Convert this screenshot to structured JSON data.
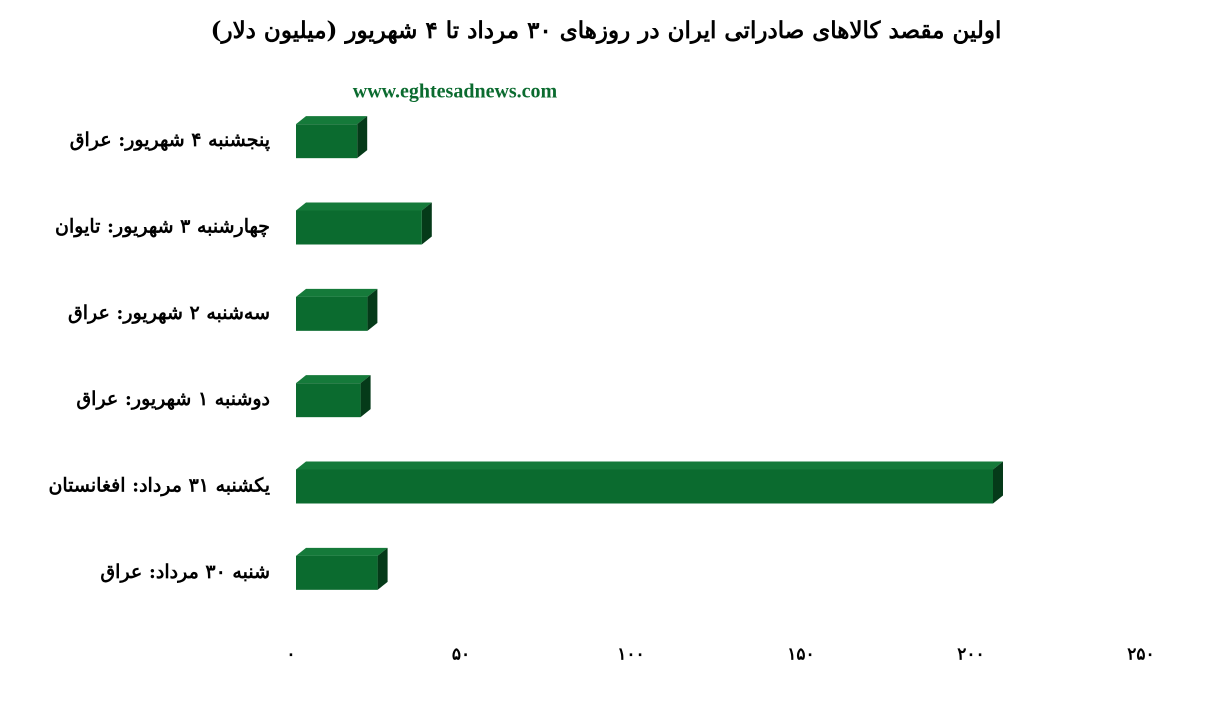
{
  "chart_data": {
    "type": "bar",
    "orientation": "horizontal",
    "title": "اولین مقصد کالاهای صادراتی ایران در روزهای ۳۰ مرداد تا ۴ شهریور (میلیون دلار)",
    "watermark": "www.eghtesadnews.com",
    "categories": [
      "پنجشنبه ۴ شهریور: عراق",
      "چهارشنبه ۳ شهریور: تایوان",
      "سه‌شنبه ۲ شهریور: عراق",
      "دوشنبه ۱ شهریور: عراق",
      "یکشنبه ۳۱ مرداد: افغانستان",
      "شنبه ۳۰ مرداد: عراق"
    ],
    "values": [
      18,
      37,
      21,
      19,
      205,
      24
    ],
    "color": "#0b6b2f",
    "xlim": [
      0,
      250
    ],
    "xticks": [
      {
        "value": 0,
        "label": "۰"
      },
      {
        "value": 50,
        "label": "۵۰"
      },
      {
        "value": 100,
        "label": "۱۰۰"
      },
      {
        "value": 150,
        "label": "۱۵۰"
      },
      {
        "value": 200,
        "label": "۲۰۰"
      },
      {
        "value": 250,
        "label": "۲۵۰"
      }
    ],
    "grid": false
  }
}
